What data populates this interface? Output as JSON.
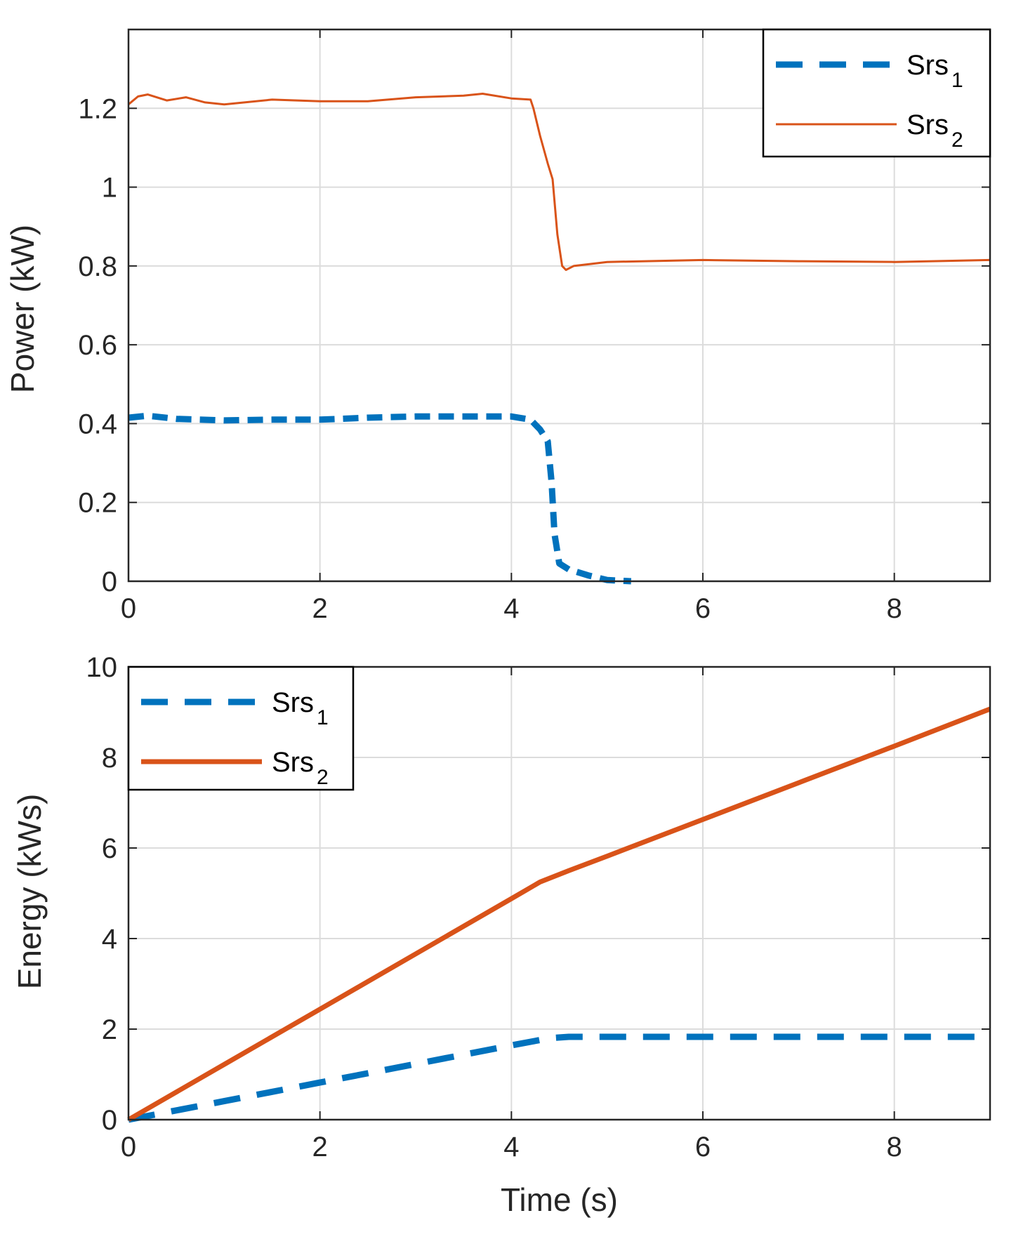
{
  "chart_data": [
    {
      "type": "line",
      "xlabel": "",
      "ylabel": "Power (kW)",
      "xlim": [
        0,
        9
      ],
      "ylim": [
        0,
        1.4
      ],
      "xticks": [
        "0",
        "2",
        "4",
        "6",
        "8"
      ],
      "yticks": [
        "0",
        "0.2",
        "0.4",
        "0.6",
        "0.8",
        "1",
        "1.2"
      ],
      "grid": true,
      "legend_position": "top-right",
      "series": [
        {
          "name_base": "Srs",
          "name_sub": "1",
          "color": "#0072BD",
          "style": "dashed",
          "x": [
            0,
            0.2,
            0.5,
            1.0,
            1.5,
            2.0,
            2.5,
            3.0,
            3.5,
            4.0,
            4.2,
            4.3,
            4.38,
            4.42,
            4.45,
            4.5,
            4.6,
            4.8,
            5.0,
            5.25
          ],
          "y": [
            0.415,
            0.42,
            0.412,
            0.408,
            0.41,
            0.41,
            0.415,
            0.418,
            0.418,
            0.418,
            0.41,
            0.385,
            0.355,
            0.25,
            0.12,
            0.045,
            0.03,
            0.015,
            0.003,
            0.0
          ]
        },
        {
          "name_base": "Srs",
          "name_sub": "2",
          "color": "#D95319",
          "style": "solid",
          "x": [
            0,
            0.1,
            0.2,
            0.4,
            0.6,
            0.8,
            1.0,
            1.5,
            2.0,
            2.5,
            3.0,
            3.5,
            3.7,
            4.0,
            4.2,
            4.23,
            4.3,
            4.38,
            4.43,
            4.48,
            4.53,
            4.57,
            4.65,
            5.0,
            6.0,
            7.0,
            8.0,
            9.0
          ],
          "y": [
            1.21,
            1.23,
            1.235,
            1.22,
            1.228,
            1.215,
            1.21,
            1.222,
            1.218,
            1.218,
            1.228,
            1.232,
            1.237,
            1.225,
            1.222,
            1.2,
            1.13,
            1.06,
            1.02,
            0.88,
            0.8,
            0.79,
            0.8,
            0.81,
            0.815,
            0.812,
            0.81,
            0.815
          ]
        }
      ]
    },
    {
      "type": "line",
      "xlabel": "Time (s)",
      "ylabel": "Energy (kWs)",
      "xlim": [
        0,
        9
      ],
      "ylim": [
        0,
        10
      ],
      "xticks": [
        "0",
        "2",
        "4",
        "6",
        "8"
      ],
      "yticks": [
        "0",
        "2",
        "4",
        "6",
        "8",
        "10"
      ],
      "grid": true,
      "legend_position": "top-left",
      "series": [
        {
          "name_base": "Srs",
          "name_sub": "1",
          "color": "#0072BD",
          "style": "dashed",
          "x": [
            0,
            1,
            2,
            3,
            4,
            4.4,
            4.6,
            5,
            6,
            7,
            8,
            9
          ],
          "y": [
            0,
            0.41,
            0.82,
            1.23,
            1.64,
            1.8,
            1.83,
            1.83,
            1.83,
            1.83,
            1.83,
            1.83
          ]
        },
        {
          "name_base": "Srs",
          "name_sub": "2",
          "color": "#D95319",
          "style": "solid",
          "x": [
            0,
            1,
            2,
            3,
            4,
            4.3,
            4.6,
            5,
            6,
            7,
            8,
            9
          ],
          "y": [
            0,
            1.22,
            2.44,
            3.66,
            4.88,
            5.25,
            5.5,
            5.82,
            6.63,
            7.44,
            8.25,
            9.07
          ]
        }
      ]
    }
  ]
}
